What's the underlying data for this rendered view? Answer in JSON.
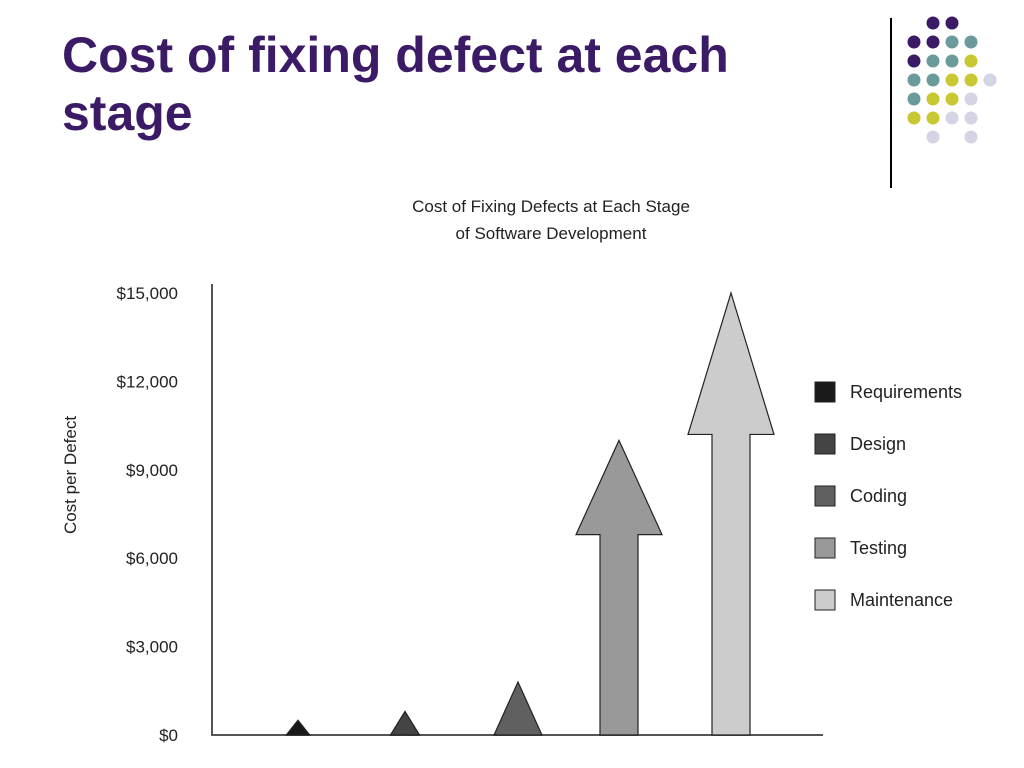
{
  "slide": {
    "title_line1": "Cost of fixing defect at each",
    "title_line2": "stage",
    "title_color": "#3b1a66"
  },
  "decoration": {
    "palette": [
      "#3b1a66",
      "#6b9a9a",
      "#c8c832",
      "#d4d4e4"
    ],
    "grid": [
      [
        -1,
        0,
        0,
        -1,
        -1
      ],
      [
        0,
        0,
        1,
        1,
        -1
      ],
      [
        0,
        1,
        1,
        2,
        -1
      ],
      [
        1,
        1,
        2,
        2,
        3
      ],
      [
        1,
        2,
        2,
        3,
        -1
      ],
      [
        2,
        2,
        3,
        3,
        -1
      ],
      [
        -1,
        3,
        -1,
        3,
        -1
      ]
    ]
  },
  "chart_data": {
    "type": "bar",
    "mark_shape": "arrow",
    "title": "Cost of Fixing Defects at Each Stage",
    "subtitle": "of Software Development",
    "ylabel": "Cost per Defect",
    "xlabel": "",
    "ylim": [
      0,
      15000
    ],
    "yticks": [
      0,
      3000,
      6000,
      9000,
      12000,
      15000
    ],
    "ytick_labels": [
      "$0",
      "$3,000",
      "$6,000",
      "$9,000",
      "$12,000",
      "$15,000"
    ],
    "categories": [
      "Requirements",
      "Design",
      "Coding",
      "Testing",
      "Maintenance"
    ],
    "values": [
      500,
      800,
      1800,
      10000,
      15000
    ],
    "colors": [
      "#1a1a1a",
      "#444444",
      "#606060",
      "#999999",
      "#cccccc"
    ],
    "legend_position": "right",
    "grid": false
  }
}
